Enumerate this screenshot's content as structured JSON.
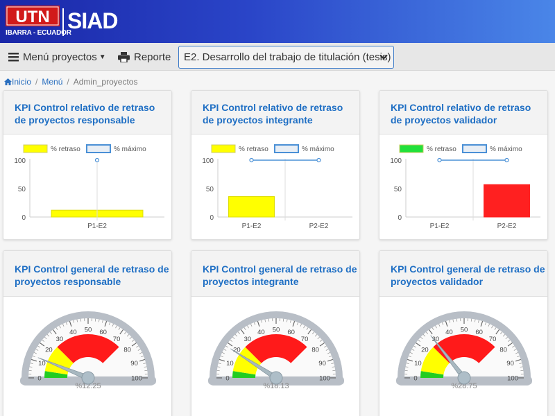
{
  "header": {
    "logo_text": "UTN",
    "logo_subtitle": "IBARRA - ECUADOR",
    "app_name": "SIAD",
    "brand_color": "#1a27a8"
  },
  "navbar": {
    "menu_label": "Menú proyectos",
    "report_label": "Reporte",
    "project_selected": "E2. Desarrollo del trabajo de titulación (tesis)"
  },
  "breadcrumb": {
    "home": "Inicio",
    "menu": "Menú",
    "current": "Admin_proyectos"
  },
  "relative_panels": [
    {
      "title_line1": "KPI Control relativo de retraso",
      "title_line2": "de proyectos responsable",
      "legend_retraso": "% retraso",
      "legend_maximo": "% máximo",
      "retraso_color": "#ffff00",
      "chart_data": {
        "type": "bar",
        "categories": [
          "P1-E2"
        ],
        "series": [
          {
            "name": "% retraso",
            "values": [
              12
            ],
            "color": "#ffff00"
          },
          {
            "name": "% máximo",
            "values": [
              100
            ]
          }
        ],
        "yticks": [
          "100",
          "50",
          "0"
        ],
        "ylim": [
          0,
          100
        ]
      }
    },
    {
      "title_line1": "KPI Control relativo de retraso",
      "title_line2": "de proyectos integrante",
      "legend_retraso": "% retraso",
      "legend_maximo": "% máximo",
      "retraso_color": "#ffff00",
      "chart_data": {
        "type": "bar",
        "categories": [
          "P1-E2",
          "P2-E2"
        ],
        "series": [
          {
            "name": "% retraso",
            "values": [
              36,
              0
            ],
            "color": "#ffff00"
          },
          {
            "name": "% máximo",
            "values": [
              100,
              100
            ]
          }
        ],
        "yticks": [
          "100",
          "50",
          "0"
        ],
        "ylim": [
          0,
          100
        ]
      }
    },
    {
      "title_line1": "KPI Control relativo de retraso",
      "title_line2": "de proyectos validador",
      "legend_retraso": "% retraso",
      "legend_maximo": "% máximo",
      "retraso_color": "#22e03a",
      "chart_data": {
        "type": "bar",
        "categories": [
          "P1-E2",
          "P2-E2"
        ],
        "series": [
          {
            "name": "% retraso",
            "values": [
              0,
              57
            ],
            "colors": [
              "#22e03a",
              "#ff2020"
            ]
          },
          {
            "name": "% máximo",
            "values": [
              100,
              100
            ]
          }
        ],
        "yticks": [
          "100",
          "50",
          "0"
        ],
        "ylim": [
          0,
          100
        ]
      }
    }
  ],
  "general_panels": [
    {
      "title_line1": "KPI Control general de retraso de",
      "title_line2": "proyectos responsable",
      "value": 12.25,
      "value_label": "%12.25"
    },
    {
      "title_line1": "KPI Control general de retraso de",
      "title_line2": "proyectos integrante",
      "value": 18.13,
      "value_label": "%18.13"
    },
    {
      "title_line1": "KPI Control general de retraso de",
      "title_line2": "proyectos validador",
      "value": 28.75,
      "value_label": "%28.75"
    }
  ],
  "gauge": {
    "ticks": [
      "0",
      "10",
      "20",
      "30",
      "40",
      "50",
      "60",
      "70",
      "80",
      "90",
      "100"
    ],
    "bands": [
      {
        "from": 0,
        "to": 5,
        "color": "#22cc22"
      },
      {
        "from": 5,
        "to": 25,
        "color": "#ffff00"
      },
      {
        "from": 25,
        "to": 75,
        "color": "#ff1a1a"
      }
    ]
  }
}
